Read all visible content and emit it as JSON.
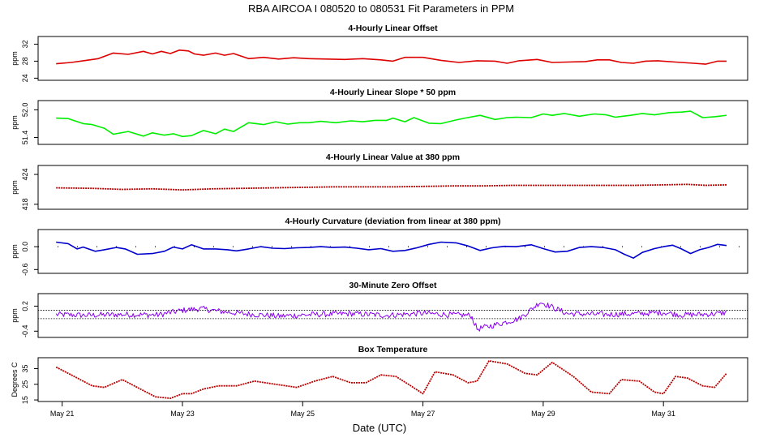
{
  "title": "RBA   AIRCOA I   080520 to 080531   Fit Parameters in PPM",
  "xlabel": "Date (UTC)",
  "x_range_days": [
    20.6,
    32.4
  ],
  "x_ticks": [
    {
      "day": 21,
      "label": "May 21"
    },
    {
      "day": 23,
      "label": "May 23"
    },
    {
      "day": 25,
      "label": "May 25"
    },
    {
      "day": 27,
      "label": "May 27"
    },
    {
      "day": 29,
      "label": "May 29"
    },
    {
      "day": 31,
      "label": "May 31"
    }
  ],
  "chart_data": [
    {
      "type": "line",
      "title": "4-Hourly Linear Offset",
      "ylabel": "ppm",
      "ylim": [
        23.5,
        33.8
      ],
      "yticks": [
        {
          "v": 24,
          "label": "24"
        },
        {
          "v": 28,
          "label": "28"
        },
        {
          "v": 32,
          "label": "32"
        }
      ],
      "color": "#dd0000",
      "style": "line",
      "x": [
        20.9,
        21.15,
        21.4,
        21.6,
        21.85,
        22.1,
        22.35,
        22.5,
        22.65,
        22.8,
        22.95,
        23.1,
        23.2,
        23.35,
        23.55,
        23.7,
        23.85,
        24.1,
        24.35,
        24.6,
        24.85,
        25.1,
        25.4,
        25.7,
        26.0,
        26.3,
        26.5,
        26.7,
        27.0,
        27.3,
        27.6,
        27.9,
        28.2,
        28.4,
        28.6,
        28.9,
        29.15,
        29.4,
        29.7,
        29.9,
        30.1,
        30.3,
        30.5,
        30.7,
        30.9,
        31.2,
        31.5,
        31.7,
        31.9,
        32.05
      ],
      "y": [
        27.4,
        27.7,
        28.2,
        28.6,
        29.9,
        29.6,
        30.3,
        29.7,
        30.3,
        29.8,
        30.6,
        30.4,
        29.7,
        29.4,
        29.9,
        29.4,
        29.8,
        28.6,
        28.9,
        28.5,
        28.8,
        28.6,
        28.5,
        28.4,
        28.6,
        28.3,
        28.0,
        28.9,
        28.9,
        28.2,
        27.7,
        28.1,
        28.0,
        27.5,
        28.1,
        28.4,
        27.7,
        27.8,
        27.9,
        28.3,
        28.3,
        27.7,
        27.5,
        28.0,
        28.1,
        27.8,
        27.5,
        27.3,
        28.0,
        28.0
      ]
    },
    {
      "type": "line",
      "title": "4-Hourly Linear Slope * 50 ppm",
      "ylabel": "ppm",
      "ylim": [
        51.25,
        52.2
      ],
      "yticks": [
        {
          "v": 51.4,
          "label": "51.4"
        },
        {
          "v": 52.0,
          "label": "52.0"
        }
      ],
      "color": "#00ee00",
      "style": "line",
      "x": [
        20.9,
        21.1,
        21.35,
        21.5,
        21.7,
        21.85,
        22.1,
        22.35,
        22.5,
        22.7,
        22.85,
        23.0,
        23.15,
        23.35,
        23.55,
        23.7,
        23.85,
        24.1,
        24.35,
        24.55,
        24.75,
        24.95,
        25.1,
        25.3,
        25.55,
        25.8,
        26.0,
        26.2,
        26.4,
        26.5,
        26.7,
        26.85,
        27.1,
        27.3,
        27.55,
        27.7,
        27.95,
        28.2,
        28.4,
        28.55,
        28.8,
        29.0,
        29.15,
        29.35,
        29.6,
        29.85,
        30.05,
        30.2,
        30.45,
        30.65,
        30.85,
        31.1,
        31.3,
        31.45,
        31.65,
        31.85,
        32.05
      ],
      "y": [
        51.82,
        51.81,
        51.7,
        51.68,
        51.6,
        51.47,
        51.53,
        51.43,
        51.5,
        51.45,
        51.48,
        51.42,
        51.44,
        51.55,
        51.48,
        51.58,
        51.53,
        51.72,
        51.68,
        51.74,
        51.69,
        51.72,
        51.72,
        51.75,
        51.72,
        51.76,
        51.74,
        51.77,
        51.77,
        51.82,
        51.74,
        51.83,
        51.71,
        51.7,
        51.78,
        51.82,
        51.88,
        51.79,
        51.83,
        51.84,
        51.83,
        51.91,
        51.88,
        51.92,
        51.86,
        51.91,
        51.89,
        51.84,
        51.88,
        51.92,
        51.89,
        51.94,
        51.95,
        51.97,
        51.83,
        51.85,
        51.88
      ]
    },
    {
      "type": "line",
      "title": "4-Hourly Linear Value at 380 ppm",
      "ylabel": "ppm",
      "ylim": [
        417.0,
        425.8
      ],
      "yticks": [
        {
          "v": 418,
          "label": "418"
        },
        {
          "v": 424,
          "label": "424"
        }
      ],
      "color": "#bb0000",
      "style": "dotted",
      "x": [
        20.9,
        21.5,
        22.0,
        22.5,
        23.0,
        23.5,
        24.0,
        24.5,
        25.0,
        25.5,
        26.0,
        26.5,
        27.0,
        27.5,
        28.0,
        28.5,
        29.0,
        29.5,
        30.0,
        30.5,
        31.0,
        31.4,
        31.7,
        32.05
      ],
      "y": [
        421.3,
        421.2,
        421.0,
        421.1,
        420.9,
        421.1,
        421.2,
        421.3,
        421.4,
        421.5,
        421.5,
        421.5,
        421.6,
        421.7,
        421.7,
        421.8,
        421.8,
        421.8,
        421.8,
        421.8,
        421.9,
        422.0,
        421.8,
        421.9
      ]
    },
    {
      "type": "line",
      "title": "4-Hourly Curvature (deviation from linear at 380 ppm)",
      "ylabel": "ppm",
      "ylim": [
        -0.7,
        0.45
      ],
      "yticks": [
        {
          "v": -0.6,
          "label": "-0.6"
        },
        {
          "v": 0.0,
          "label": "0.0"
        }
      ],
      "color": "#0000cc",
      "style": "line",
      "zero_line": true,
      "x": [
        20.9,
        21.1,
        21.25,
        21.35,
        21.55,
        21.7,
        21.9,
        22.05,
        22.25,
        22.5,
        22.7,
        22.85,
        23.0,
        23.15,
        23.35,
        23.55,
        23.75,
        23.9,
        24.1,
        24.3,
        24.5,
        24.7,
        24.9,
        25.1,
        25.3,
        25.5,
        25.7,
        25.9,
        26.1,
        26.3,
        26.5,
        26.7,
        26.9,
        27.1,
        27.3,
        27.55,
        27.75,
        27.95,
        28.15,
        28.35,
        28.55,
        28.8,
        29.0,
        29.2,
        29.4,
        29.6,
        29.8,
        30.0,
        30.2,
        30.35,
        30.5,
        30.65,
        30.85,
        31.0,
        31.15,
        31.3,
        31.45,
        31.6,
        31.75,
        31.9,
        32.05
      ],
      "y": [
        0.12,
        0.08,
        -0.06,
        -0.01,
        -0.12,
        -0.08,
        -0.02,
        -0.06,
        -0.2,
        -0.18,
        -0.12,
        -0.01,
        -0.06,
        0.05,
        -0.06,
        -0.06,
        -0.08,
        -0.11,
        -0.06,
        0.0,
        -0.04,
        -0.05,
        -0.03,
        -0.02,
        0.0,
        -0.02,
        -0.01,
        -0.04,
        -0.08,
        -0.05,
        -0.12,
        -0.1,
        -0.03,
        0.06,
        0.12,
        0.1,
        0.02,
        -0.1,
        -0.03,
        0.01,
        0.0,
        0.05,
        -0.05,
        -0.14,
        -0.12,
        -0.02,
        0.0,
        -0.02,
        -0.08,
        -0.2,
        -0.3,
        -0.15,
        -0.05,
        0.0,
        0.04,
        -0.06,
        -0.18,
        -0.08,
        -0.02,
        0.06,
        0.03
      ]
    },
    {
      "type": "line",
      "title": "30-Minute Zero Offset",
      "ylabel": "ppm",
      "ylim": [
        -0.55,
        0.5
      ],
      "yticks": [
        {
          "v": -0.4,
          "label": "-0.4"
        },
        {
          "v": 0.2,
          "label": "0.2"
        }
      ],
      "color": "#8800ee",
      "style": "noisy",
      "ref_lines": [
        0.1,
        -0.1
      ],
      "x": [
        20.9,
        21.4,
        22.0,
        22.6,
        23.0,
        23.3,
        23.6,
        24.0,
        24.6,
        25.2,
        25.8,
        26.4,
        27.0,
        27.5,
        27.8,
        27.9,
        28.2,
        28.6,
        28.8,
        28.95,
        29.4,
        30.0,
        30.6,
        31.0,
        31.3,
        31.6,
        31.9,
        32.05
      ],
      "y": [
        0.0,
        -0.02,
        0.0,
        -0.01,
        0.1,
        0.14,
        0.08,
        0.02,
        -0.04,
        0.0,
        0.02,
        -0.02,
        0.03,
        -0.01,
        -0.02,
        -0.35,
        -0.25,
        -0.1,
        0.12,
        0.3,
        0.02,
        0.0,
        0.02,
        0.05,
        -0.01,
        0.0,
        0.02,
        0.05
      ],
      "noise_amplitude": 0.07
    },
    {
      "type": "line",
      "title": "Box Temperature",
      "ylabel": "Degrees C",
      "ylim": [
        14.0,
        42.0
      ],
      "yticks": [
        {
          "v": 15,
          "label": "15"
        },
        {
          "v": 25,
          "label": "25"
        },
        {
          "v": 35,
          "label": "35"
        }
      ],
      "color": "#bb0000",
      "style": "dotted",
      "x": [
        20.9,
        21.2,
        21.5,
        21.7,
        22.0,
        22.3,
        22.55,
        22.8,
        23.0,
        23.15,
        23.35,
        23.6,
        23.9,
        24.2,
        24.55,
        24.9,
        25.2,
        25.5,
        25.8,
        26.05,
        26.3,
        26.55,
        26.8,
        27.0,
        27.2,
        27.5,
        27.75,
        27.9,
        28.1,
        28.4,
        28.7,
        28.9,
        29.15,
        29.5,
        29.8,
        30.1,
        30.3,
        30.6,
        30.85,
        31.0,
        31.2,
        31.4,
        31.65,
        31.85,
        32.05
      ],
      "y": [
        36,
        30,
        24,
        23,
        28,
        22,
        17,
        16,
        19,
        19,
        22,
        24,
        24,
        27,
        25,
        23,
        27,
        30,
        26,
        26,
        31,
        30,
        24,
        19,
        33,
        31,
        26,
        27,
        40,
        38,
        32,
        31,
        39,
        30,
        20,
        19,
        28,
        27,
        20,
        19,
        30,
        29,
        24,
        23,
        32
      ]
    }
  ]
}
